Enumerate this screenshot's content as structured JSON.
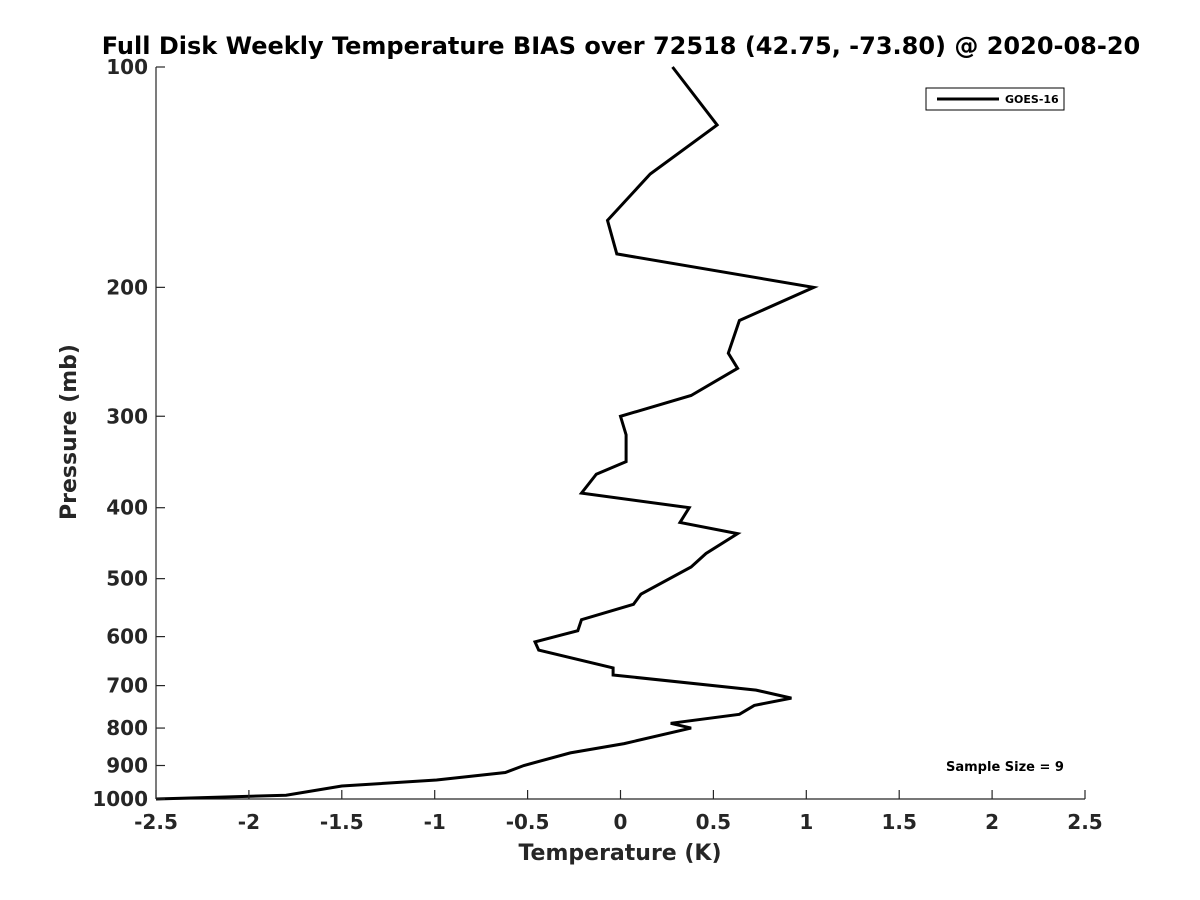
{
  "chart_data": {
    "type": "line",
    "title": "Full Disk Weekly Temperature BIAS over 72518 (42.75, -73.80) @ 2020-08-20",
    "xlabel": "Temperature (K)",
    "ylabel": "Pressure (mb)",
    "xlim": [
      -2.5,
      2.5
    ],
    "ylim": [
      1000,
      100
    ],
    "yscale": "log",
    "xticks": [
      -2.5,
      -2,
      -1.5,
      -1,
      -0.5,
      0,
      0.5,
      1,
      1.5,
      2,
      2.5
    ],
    "xtick_labels": [
      "-2.5",
      "-2",
      "-1.5",
      "-1",
      "-0.5",
      "0",
      "0.5",
      "1",
      "1.5",
      "2",
      "2.5"
    ],
    "yticks": [
      100,
      200,
      300,
      400,
      500,
      600,
      700,
      800,
      900,
      1000
    ],
    "ytick_labels": [
      "100",
      "200",
      "300",
      "400",
      "500",
      "600",
      "700",
      "800",
      "900",
      "1000"
    ],
    "legend": "top-right",
    "grid": false,
    "series": [
      {
        "name": "GOES-16",
        "color": "#000000",
        "points": [
          [
            0.28,
            100
          ],
          [
            0.52,
            120
          ],
          [
            0.16,
            140
          ],
          [
            -0.07,
            162
          ],
          [
            -0.02,
            180
          ],
          [
            1.04,
            200
          ],
          [
            0.64,
            222
          ],
          [
            0.58,
            246
          ],
          [
            0.63,
            258
          ],
          [
            0.38,
            281
          ],
          [
            0.0,
            300
          ],
          [
            0.03,
            318
          ],
          [
            0.03,
            346
          ],
          [
            -0.13,
            360
          ],
          [
            -0.21,
            382
          ],
          [
            0.37,
            400
          ],
          [
            0.32,
            419
          ],
          [
            0.63,
            434
          ],
          [
            0.46,
            462
          ],
          [
            0.38,
            482
          ],
          [
            0.11,
            525
          ],
          [
            0.07,
            542
          ],
          [
            -0.21,
            569
          ],
          [
            -0.23,
            589
          ],
          [
            -0.46,
            610
          ],
          [
            -0.44,
            626
          ],
          [
            -0.04,
            662
          ],
          [
            -0.04,
            677
          ],
          [
            0.73,
            710
          ],
          [
            0.92,
            728
          ],
          [
            0.72,
            745
          ],
          [
            0.64,
            766
          ],
          [
            0.27,
            788
          ],
          [
            0.38,
            800
          ],
          [
            0.02,
            840
          ],
          [
            -0.27,
            865
          ],
          [
            -0.52,
            900
          ],
          [
            -0.62,
            920
          ],
          [
            -0.99,
            942
          ],
          [
            -1.5,
            960
          ],
          [
            -1.8,
            988
          ],
          [
            -2.5,
            1000
          ]
        ]
      }
    ],
    "annotations": [
      "Sample Size = 9"
    ]
  }
}
